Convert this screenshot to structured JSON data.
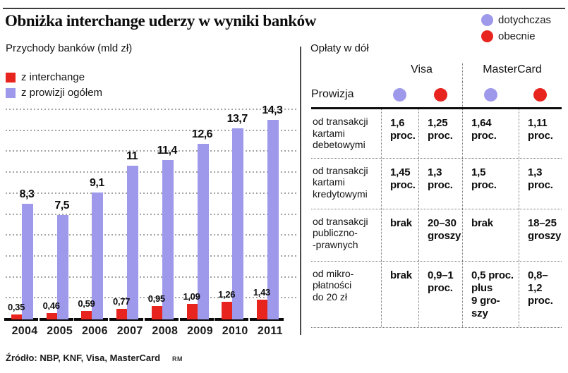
{
  "title": "Obniżka interchange uderzy w wyniki banków",
  "colors": {
    "purple": "#9e99ea",
    "red": "#e8241f",
    "black": "#0d0d0d"
  },
  "legend_top": {
    "items": [
      {
        "label": "dotychczas",
        "color": "#9e99ea"
      },
      {
        "label": "obecnie",
        "color": "#e8241f"
      }
    ]
  },
  "chart": {
    "subtitle": "Przychody banków (mld zł)",
    "legend": [
      {
        "label": "z interchange",
        "color": "#e8241f"
      },
      {
        "label": "z prowizji ogółem",
        "color": "#9e99ea"
      }
    ]
  },
  "chart_data": {
    "type": "bar",
    "title": "Przychody banków (mld zł)",
    "categories": [
      "2004",
      "2005",
      "2006",
      "2007",
      "2008",
      "2009",
      "2010",
      "2011"
    ],
    "series": [
      {
        "name": "z interchange",
        "color": "#e8241f",
        "values": [
          0.35,
          0.46,
          0.59,
          0.77,
          0.95,
          1.09,
          1.26,
          1.43
        ],
        "labels": [
          "0,35",
          "0,46",
          "0,59",
          "0,77",
          "0,95",
          "1,09",
          "1,26",
          "1,43"
        ]
      },
      {
        "name": "z prowizji ogółem",
        "color": "#9e99ea",
        "values": [
          8.3,
          7.5,
          9.1,
          11,
          11.4,
          12.6,
          13.7,
          14.3
        ],
        "labels": [
          "8,3",
          "7,5",
          "9,1",
          "11",
          "11,4",
          "12,6",
          "13,7",
          "14,3"
        ]
      }
    ],
    "ylim": [
      0,
      15
    ],
    "grid": true,
    "grid_step": 1.5,
    "legend_position": "top-left"
  },
  "table": {
    "title": "Opłaty w dół",
    "brands": [
      "Visa",
      "MasterCard"
    ],
    "prowizja_label": "Prowizja",
    "dot_colors": [
      "#9e99ea",
      "#e8241f",
      "#9e99ea",
      "#e8241f"
    ],
    "rows": [
      {
        "label": "od transakcji\nkartami\ndebetowymi",
        "values": [
          "1,6\nproc.",
          "1,25\nproc.",
          "1,64\nproc.",
          "1,11\nproc."
        ]
      },
      {
        "label": "od transakcji\nkartami\nkredytowymi",
        "values": [
          "1,45\nproc.",
          "1,3\nproc.",
          "1,5\nproc.",
          "1,3\nproc."
        ]
      },
      {
        "label": "od transakcji\npubliczno-\n-prawnych",
        "values": [
          "brak",
          "20–30\ngroszy",
          "brak",
          "18–25\ngroszy"
        ]
      },
      {
        "label": "od mikro-\npłatności\ndo 20 zł",
        "values": [
          "brak",
          "0,9–1\nproc.",
          "0,5 proc.\nplus\n9 gro-\nszy",
          "0,8–1,2\nproc."
        ]
      }
    ]
  },
  "footer": {
    "source": "Źródło: NBP, KNF, Visa, MasterCard",
    "credit": "RM"
  }
}
